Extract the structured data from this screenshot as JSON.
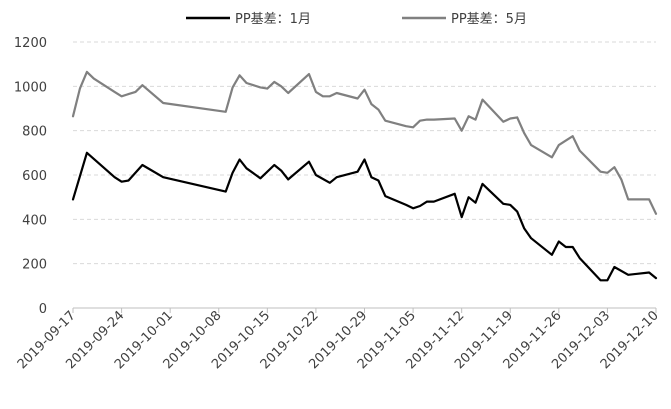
{
  "chart_data": {
    "type": "line",
    "title": "",
    "xlabel": "",
    "ylabel": "",
    "ylim": [
      0,
      1200
    ],
    "yticks": [
      0,
      200,
      400,
      600,
      800,
      1000,
      1200
    ],
    "xlim": [
      "2019-09-17",
      "2019-12-10"
    ],
    "xticks": [
      "2019-09-17",
      "2019-09-24",
      "2019-10-01",
      "2019-10-08",
      "2019-10-15",
      "2019-10-22",
      "2019-10-29",
      "2019-11-05",
      "2019-11-12",
      "2019-11-19",
      "2019-11-26",
      "2019-12-03",
      "2019-12-10"
    ],
    "grid": "horizontal-dashed",
    "legend_position": "top",
    "series": [
      {
        "name": "PP基差：1月",
        "color": "#000000",
        "points": [
          [
            "2019-09-17",
            490
          ],
          [
            "2019-09-19",
            700
          ],
          [
            "2019-09-23",
            590
          ],
          [
            "2019-09-24",
            570
          ],
          [
            "2019-09-25",
            575
          ],
          [
            "2019-09-27",
            645
          ],
          [
            "2019-09-30",
            590
          ],
          [
            "2019-10-09",
            525
          ],
          [
            "2019-10-10",
            610
          ],
          [
            "2019-10-11",
            670
          ],
          [
            "2019-10-12",
            630
          ],
          [
            "2019-10-14",
            585
          ],
          [
            "2019-10-16",
            645
          ],
          [
            "2019-10-17",
            620
          ],
          [
            "2019-10-18",
            580
          ],
          [
            "2019-10-21",
            660
          ],
          [
            "2019-10-22",
            600
          ],
          [
            "2019-10-24",
            565
          ],
          [
            "2019-10-25",
            590
          ],
          [
            "2019-10-28",
            615
          ],
          [
            "2019-10-29",
            670
          ],
          [
            "2019-10-30",
            590
          ],
          [
            "2019-10-31",
            575
          ],
          [
            "2019-11-01",
            505
          ],
          [
            "2019-11-04",
            465
          ],
          [
            "2019-11-05",
            450
          ],
          [
            "2019-11-06",
            460
          ],
          [
            "2019-11-07",
            480
          ],
          [
            "2019-11-08",
            480
          ],
          [
            "2019-11-11",
            515
          ],
          [
            "2019-11-12",
            410
          ],
          [
            "2019-11-13",
            500
          ],
          [
            "2019-11-14",
            475
          ],
          [
            "2019-11-15",
            560
          ],
          [
            "2019-11-18",
            470
          ],
          [
            "2019-11-19",
            465
          ],
          [
            "2019-11-20",
            435
          ],
          [
            "2019-11-21",
            360
          ],
          [
            "2019-11-22",
            315
          ],
          [
            "2019-11-25",
            240
          ],
          [
            "2019-11-26",
            300
          ],
          [
            "2019-11-27",
            275
          ],
          [
            "2019-11-28",
            275
          ],
          [
            "2019-11-29",
            225
          ],
          [
            "2019-12-02",
            125
          ],
          [
            "2019-12-03",
            125
          ],
          [
            "2019-12-04",
            185
          ],
          [
            "2019-12-06",
            150
          ],
          [
            "2019-12-09",
            160
          ],
          [
            "2019-12-10",
            135
          ]
        ]
      },
      {
        "name": "PP基差：5月",
        "color": "#808080",
        "points": [
          [
            "2019-09-17",
            865
          ],
          [
            "2019-09-18",
            990
          ],
          [
            "2019-09-19",
            1065
          ],
          [
            "2019-09-20",
            1035
          ],
          [
            "2019-09-23",
            975
          ],
          [
            "2019-09-24",
            955
          ],
          [
            "2019-09-25",
            965
          ],
          [
            "2019-09-26",
            975
          ],
          [
            "2019-09-27",
            1005
          ],
          [
            "2019-09-30",
            925
          ],
          [
            "2019-10-09",
            885
          ],
          [
            "2019-10-10",
            995
          ],
          [
            "2019-10-11",
            1050
          ],
          [
            "2019-10-12",
            1015
          ],
          [
            "2019-10-14",
            995
          ],
          [
            "2019-10-15",
            990
          ],
          [
            "2019-10-16",
            1020
          ],
          [
            "2019-10-17",
            1000
          ],
          [
            "2019-10-18",
            970
          ],
          [
            "2019-10-21",
            1055
          ],
          [
            "2019-10-22",
            975
          ],
          [
            "2019-10-23",
            955
          ],
          [
            "2019-10-24",
            955
          ],
          [
            "2019-10-25",
            970
          ],
          [
            "2019-10-28",
            945
          ],
          [
            "2019-10-29",
            985
          ],
          [
            "2019-10-30",
            920
          ],
          [
            "2019-10-31",
            895
          ],
          [
            "2019-11-01",
            845
          ],
          [
            "2019-11-04",
            820
          ],
          [
            "2019-11-05",
            815
          ],
          [
            "2019-11-06",
            845
          ],
          [
            "2019-11-07",
            850
          ],
          [
            "2019-11-08",
            850
          ],
          [
            "2019-11-11",
            855
          ],
          [
            "2019-11-12",
            800
          ],
          [
            "2019-11-13",
            865
          ],
          [
            "2019-11-14",
            850
          ],
          [
            "2019-11-15",
            940
          ],
          [
            "2019-11-18",
            840
          ],
          [
            "2019-11-19",
            855
          ],
          [
            "2019-11-20",
            860
          ],
          [
            "2019-11-21",
            790
          ],
          [
            "2019-11-22",
            735
          ],
          [
            "2019-11-25",
            680
          ],
          [
            "2019-11-26",
            735
          ],
          [
            "2019-11-27",
            755
          ],
          [
            "2019-11-28",
            775
          ],
          [
            "2019-11-29",
            710
          ],
          [
            "2019-12-02",
            615
          ],
          [
            "2019-12-03",
            610
          ],
          [
            "2019-12-04",
            635
          ],
          [
            "2019-12-05",
            580
          ],
          [
            "2019-12-06",
            490
          ],
          [
            "2019-12-09",
            490
          ],
          [
            "2019-12-10",
            425
          ]
        ]
      }
    ]
  }
}
